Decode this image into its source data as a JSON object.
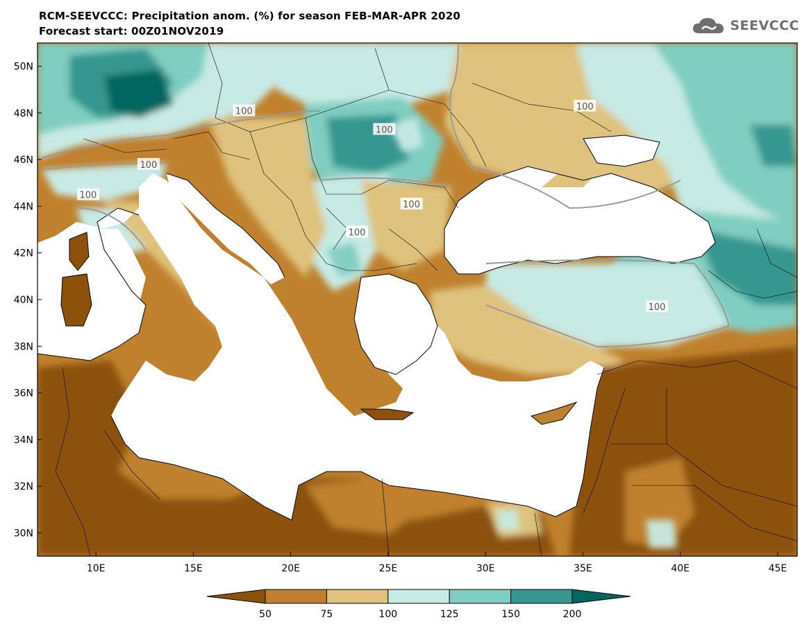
{
  "title": {
    "line1": "RCM-SEEVCCC: Precipitation anom. (%) for season FEB-MAR-APR 2020",
    "line2": "Forecast start: 00Z01NOV2019"
  },
  "logo": {
    "text": "SEEVCCC",
    "icon": "cloud-icon"
  },
  "axes": {
    "lat_labels": [
      "50N",
      "48N",
      "46N",
      "44N",
      "42N",
      "40N",
      "38N",
      "36N",
      "34N",
      "32N",
      "30N"
    ],
    "lat_values": [
      50,
      48,
      46,
      44,
      42,
      40,
      38,
      36,
      34,
      32,
      30
    ],
    "lon_labels": [
      "10E",
      "15E",
      "20E",
      "25E",
      "30E",
      "35E",
      "40E",
      "45E"
    ],
    "lon_values": [
      10,
      15,
      20,
      25,
      30,
      35,
      40,
      45
    ],
    "lon_range": [
      7,
      46
    ],
    "lat_range": [
      29,
      51
    ]
  },
  "contour_labels": [
    {
      "text": "100",
      "lon": 24.8,
      "lat": 47.3
    },
    {
      "text": "100",
      "lon": 12.7,
      "lat": 45.8
    },
    {
      "text": "100",
      "lon": 9.6,
      "lat": 44.5
    },
    {
      "text": "100",
      "lon": 26.2,
      "lat": 44.1
    },
    {
      "text": "100",
      "lon": 23.4,
      "lat": 42.9
    },
    {
      "text": "100",
      "lon": 17.6,
      "lat": 48.1
    },
    {
      "text": "100",
      "lon": 35.1,
      "lat": 48.3
    },
    {
      "text": "100",
      "lon": 38.8,
      "lat": 39.7
    }
  ],
  "colorbar": {
    "labels": [
      "50",
      "75",
      "100",
      "125",
      "150",
      "200"
    ],
    "colors": [
      "#8c510a",
      "#bf812d",
      "#dfc27d",
      "#c7eae5",
      "#80cdc1",
      "#35978f",
      "#01665e"
    ]
  },
  "palette": {
    "very_dry": "#8c510a",
    "dry": "#bf812d",
    "slightly_dry": "#dfc27d",
    "slightly_wet": "#c7eae5",
    "wet": "#80cdc1",
    "very_wet": "#35978f",
    "extreme_wet": "#01665e",
    "sea": "#ffffff"
  }
}
